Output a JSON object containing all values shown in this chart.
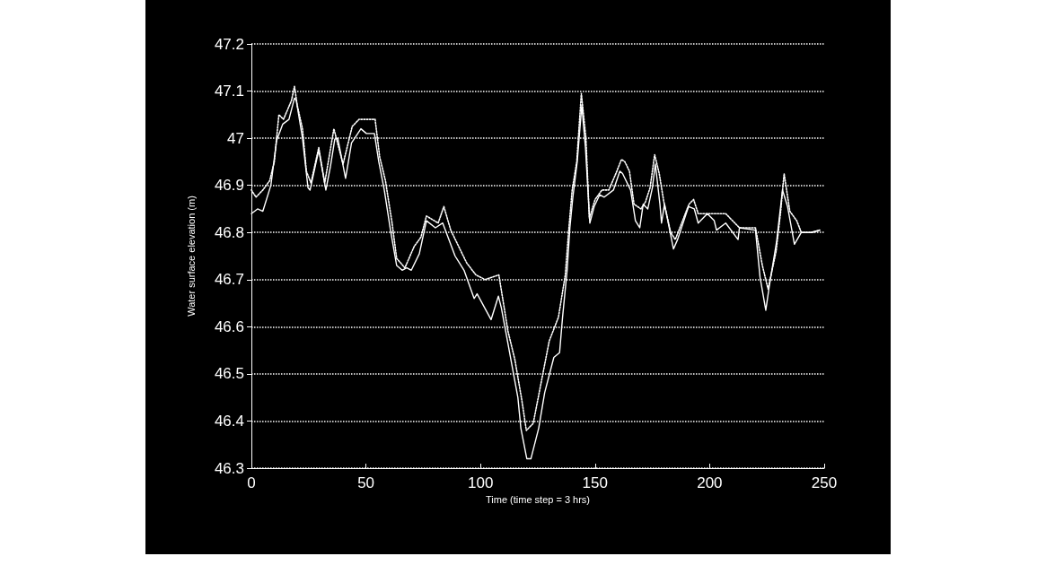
{
  "chart_data": {
    "type": "line",
    "xlabel": "Time (time step = 3 hrs)",
    "ylabel": "Water surface elevation (m)",
    "xlim": [
      0,
      250
    ],
    "xticks": [
      0,
      50,
      100,
      150,
      200,
      250
    ],
    "ylim": [
      46.3,
      47.2
    ],
    "yticks": [
      46.3,
      46.4,
      46.5,
      46.6,
      46.7,
      46.8,
      46.9,
      47,
      47.1,
      47.2
    ],
    "grid": "y",
    "marker": "none",
    "series": [
      {
        "color": "#ffffff",
        "line_style": "solid",
        "x": [
          0,
          2.7,
          5,
          8.5,
          11,
          13.7,
          16.4,
          18.8,
          19.6,
          22.3,
          24.7,
          25.6,
          29.4,
          32.5,
          34.5,
          36.4,
          37.7,
          41.1,
          43.7,
          47.8,
          50.2,
          53.7,
          55.6,
          58,
          60.7,
          63.4,
          65.8,
          67.8,
          69.8,
          73.3,
          76.4,
          80.3,
          83.5,
          88.9,
          92.8,
          97.2,
          98.5,
          104.6,
          107.8,
          109.1,
          111,
          116.3,
          117.6,
          120.2,
          122,
          125.4,
          128,
          132,
          134.5,
          135.8,
          137.8,
          139,
          140.3,
          142.2,
          144.2,
          145.8,
          147.7,
          149.6,
          152,
          154,
          158,
          160.8,
          162,
          165.5,
          167.6,
          169.5,
          171,
          173,
          175,
          176.3,
          178.3,
          179,
          180.3,
          184.2,
          186,
          190.8,
          193.3,
          195,
          199,
          202,
          203,
          207,
          212.4,
          213,
          220,
          222,
          224.5,
          226,
          229.2,
          231.8,
          234,
          237,
          240,
          244,
          248
        ],
        "values": [
          46.84,
          46.85,
          46.845,
          46.9,
          46.995,
          47.03,
          47.04,
          47.085,
          47.08,
          47.0,
          46.895,
          46.89,
          46.975,
          46.89,
          46.94,
          46.998,
          47.0,
          46.915,
          46.99,
          47.02,
          47.01,
          47.01,
          46.95,
          46.89,
          46.805,
          46.73,
          46.72,
          46.725,
          46.72,
          46.755,
          46.825,
          46.81,
          46.82,
          46.75,
          46.72,
          46.66,
          46.67,
          46.615,
          46.665,
          46.64,
          46.59,
          46.45,
          46.385,
          46.32,
          46.32,
          46.385,
          46.46,
          46.535,
          46.545,
          46.62,
          46.72,
          46.81,
          46.875,
          46.95,
          47.07,
          46.98,
          46.82,
          46.855,
          46.88,
          46.875,
          46.89,
          46.93,
          46.925,
          46.89,
          46.825,
          46.81,
          46.86,
          46.85,
          46.895,
          46.945,
          46.86,
          46.82,
          46.86,
          46.765,
          46.785,
          46.855,
          46.85,
          46.82,
          46.84,
          46.825,
          46.805,
          46.82,
          46.785,
          46.81,
          46.805,
          46.705,
          46.635,
          46.685,
          46.78,
          46.89,
          46.855,
          46.775,
          46.8,
          46.8,
          46.805
        ]
      },
      {
        "color": "#ffffff",
        "line_style": "dotted",
        "x": [
          0,
          2,
          5,
          8,
          10,
          12,
          14,
          17.5,
          18.8,
          20,
          22.3,
          24,
          26,
          29.4,
          32,
          36,
          40,
          44,
          47,
          54,
          56,
          58.5,
          61.4,
          63.4,
          67,
          71,
          74,
          76.4,
          81.5,
          84,
          87,
          94,
          98,
          102,
          108,
          112,
          115,
          118,
          120,
          123,
          126,
          130,
          134,
          137,
          138.5,
          140,
          142,
          144,
          146,
          147.5,
          150,
          153,
          156,
          159.5,
          161.5,
          163,
          165,
          167,
          170,
          172,
          174,
          176,
          178,
          180,
          183,
          185,
          191,
          193,
          195,
          199,
          207,
          213,
          220,
          223,
          225.5,
          229,
          231,
          232.5,
          235,
          238,
          240,
          245,
          248
        ],
        "values": [
          46.89,
          46.875,
          46.89,
          46.91,
          46.95,
          47.05,
          47.04,
          47.08,
          47.11,
          47.07,
          47.02,
          46.93,
          46.905,
          46.98,
          46.905,
          47.02,
          46.945,
          47.025,
          47.04,
          47.04,
          46.96,
          46.91,
          46.82,
          46.745,
          46.725,
          46.77,
          46.79,
          46.835,
          46.82,
          46.855,
          46.805,
          46.735,
          46.71,
          46.7,
          46.71,
          46.59,
          46.53,
          46.445,
          46.38,
          46.395,
          46.47,
          46.57,
          46.62,
          46.71,
          46.805,
          46.89,
          46.95,
          47.095,
          47.0,
          46.83,
          46.87,
          46.89,
          46.89,
          46.93,
          46.955,
          46.95,
          46.93,
          46.86,
          46.85,
          46.865,
          46.895,
          46.965,
          46.925,
          46.865,
          46.8,
          46.785,
          46.86,
          46.87,
          46.84,
          46.84,
          46.84,
          46.81,
          46.81,
          46.73,
          46.68,
          46.76,
          46.845,
          46.925,
          46.845,
          46.825,
          46.8,
          46.8,
          46.805
        ]
      }
    ]
  }
}
